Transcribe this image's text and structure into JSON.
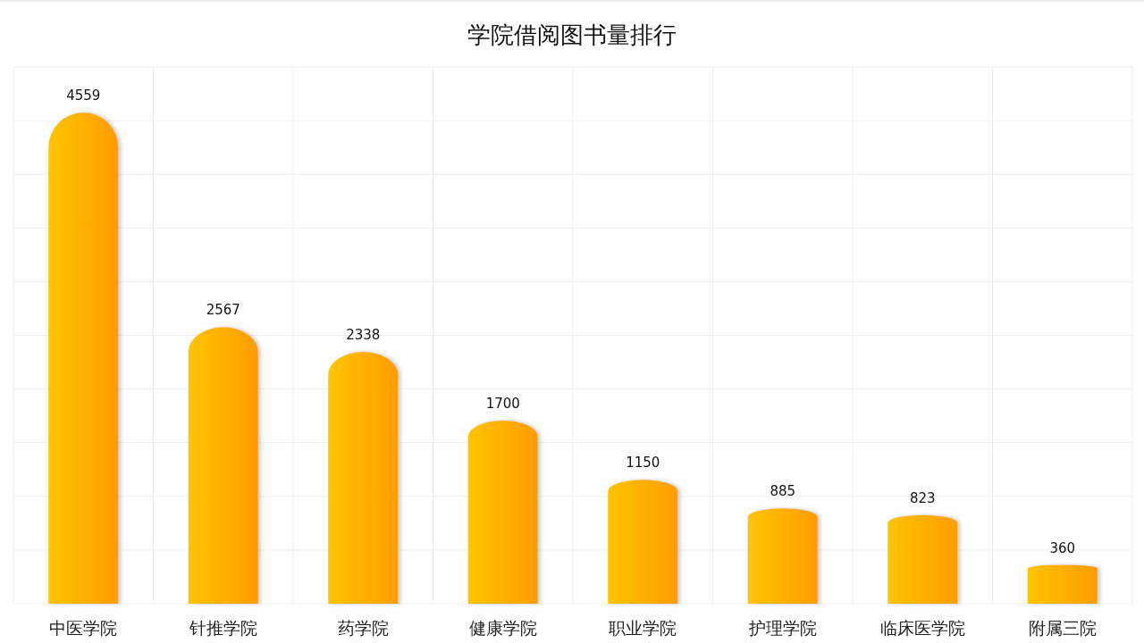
{
  "chart_data": {
    "type": "bar",
    "title": "学院借阅图书量排行",
    "categories": [
      "中医学院",
      "针推学院",
      "药学院",
      "健康学院",
      "职业学院",
      "护理学院",
      "临床医学院",
      "附属三院"
    ],
    "values": [
      4559,
      2567,
      2338,
      1700,
      1150,
      885,
      823,
      360
    ],
    "color": "#ff9c00",
    "data_labels": true,
    "grid": true
  }
}
